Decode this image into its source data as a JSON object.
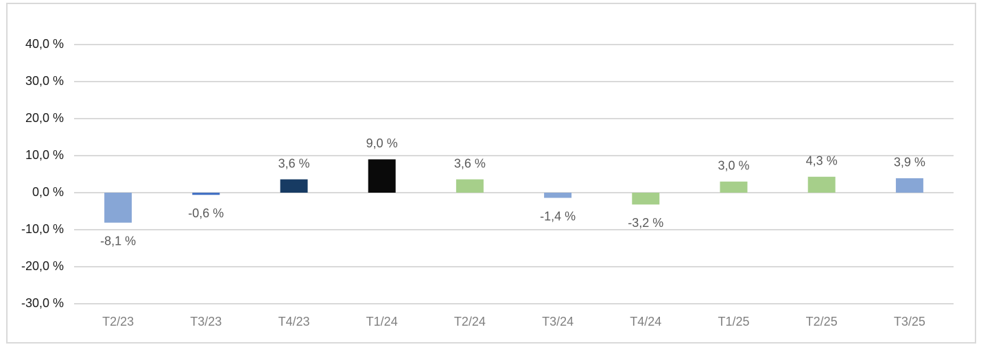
{
  "chart_data": {
    "type": "bar",
    "categories": [
      "T2/23",
      "T3/23",
      "T4/23",
      "T1/24",
      "T2/24",
      "T3/24",
      "T4/24",
      "T1/25",
      "T2/25",
      "T3/25"
    ],
    "values": [
      -8.1,
      -0.6,
      3.6,
      9.0,
      3.6,
      -1.4,
      -3.2,
      3.0,
      4.3,
      3.9
    ],
    "value_labels": [
      "-8,1 %",
      "-0,6 %",
      "3,6 %",
      "9,0 %",
      "3,6 %",
      "-1,4 %",
      "-3,2 %",
      "3,0 %",
      "4,3 %",
      "3,9 %"
    ],
    "colors": [
      "#87a6d6",
      "#4472c4",
      "#173b63",
      "#0a0a0a",
      "#a6cf8a",
      "#87a6d6",
      "#a6cf8a",
      "#a6cf8a",
      "#a6cf8a",
      "#87a6d6"
    ],
    "ylim": [
      -30,
      40
    ],
    "yticks": [
      {
        "value": -30,
        "label": "-30,0 %"
      },
      {
        "value": -20,
        "label": "-20,0 %"
      },
      {
        "value": -10,
        "label": "-10,0 %"
      },
      {
        "value": 0,
        "label": "0,0 %"
      },
      {
        "value": 10,
        "label": "10,0 %"
      },
      {
        "value": 20,
        "label": "20,0 %"
      },
      {
        "value": 30,
        "label": "30,0 %"
      },
      {
        "value": 40,
        "label": "40,0 %"
      }
    ],
    "grid": true
  }
}
